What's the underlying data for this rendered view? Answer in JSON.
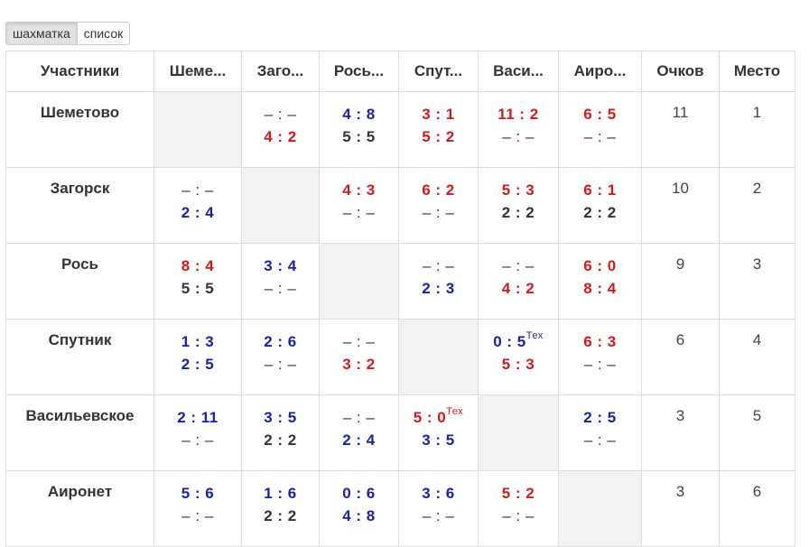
{
  "view_toggle": {
    "grid_label": "шахматка",
    "list_label": "список",
    "active": "grid"
  },
  "columns": {
    "participants": "Участники",
    "opponents": [
      "Шеме...",
      "Заго...",
      "Рось...",
      "Спут...",
      "Васи...",
      "Аиро..."
    ],
    "points": "Очков",
    "place": "Место"
  },
  "rows": [
    {
      "team": "Шеметово",
      "points": "11",
      "place": "1",
      "cells": [
        null,
        [
          {
            "t": "– : –",
            "c": "empty"
          },
          {
            "t": "4 : 2",
            "c": "red"
          }
        ],
        [
          {
            "t": "4 : 8",
            "c": "blue"
          },
          {
            "t": "5 : 5",
            "c": "black"
          }
        ],
        [
          {
            "t": "3 : 1",
            "c": "red"
          },
          {
            "t": "5 : 2",
            "c": "red"
          }
        ],
        [
          {
            "t": "11 : 2",
            "c": "red"
          },
          {
            "t": "– : –",
            "c": "empty"
          }
        ],
        [
          {
            "t": "6 : 5",
            "c": "red"
          },
          {
            "t": "– : –",
            "c": "empty"
          }
        ]
      ]
    },
    {
      "team": "Загорск",
      "points": "10",
      "place": "2",
      "cells": [
        [
          {
            "t": "– : –",
            "c": "empty"
          },
          {
            "t": "2 : 4",
            "c": "blue"
          }
        ],
        null,
        [
          {
            "t": "4 : 3",
            "c": "red"
          },
          {
            "t": "– : –",
            "c": "empty"
          }
        ],
        [
          {
            "t": "6 : 2",
            "c": "red"
          },
          {
            "t": "– : –",
            "c": "empty"
          }
        ],
        [
          {
            "t": "5 : 3",
            "c": "red"
          },
          {
            "t": "2 : 2",
            "c": "black"
          }
        ],
        [
          {
            "t": "6 : 1",
            "c": "red"
          },
          {
            "t": "2 : 2",
            "c": "black"
          }
        ]
      ]
    },
    {
      "team": "Рось",
      "points": "9",
      "place": "3",
      "cells": [
        [
          {
            "t": "8 : 4",
            "c": "red"
          },
          {
            "t": "5 : 5",
            "c": "black"
          }
        ],
        [
          {
            "t": "3 : 4",
            "c": "blue"
          },
          {
            "t": "– : –",
            "c": "empty"
          }
        ],
        null,
        [
          {
            "t": "– : –",
            "c": "empty"
          },
          {
            "t": "2 : 3",
            "c": "blue"
          }
        ],
        [
          {
            "t": "– : –",
            "c": "empty"
          },
          {
            "t": "4 : 2",
            "c": "red"
          }
        ],
        [
          {
            "t": "6 : 0",
            "c": "red"
          },
          {
            "t": "8 : 4",
            "c": "red"
          }
        ]
      ]
    },
    {
      "team": "Спутник",
      "points": "6",
      "place": "4",
      "cells": [
        [
          {
            "t": "1 : 3",
            "c": "blue"
          },
          {
            "t": "2 : 5",
            "c": "blue"
          }
        ],
        [
          {
            "t": "2 : 6",
            "c": "blue"
          },
          {
            "t": "– : –",
            "c": "empty"
          }
        ],
        [
          {
            "t": "– : –",
            "c": "empty"
          },
          {
            "t": "3 : 2",
            "c": "red"
          }
        ],
        null,
        [
          {
            "t": "0 : 5",
            "c": "blue",
            "sup": "Тех"
          },
          {
            "t": "5 : 3",
            "c": "red"
          }
        ],
        [
          {
            "t": "6 : 3",
            "c": "red"
          },
          {
            "t": "– : –",
            "c": "empty"
          }
        ]
      ]
    },
    {
      "team": "Васильевское",
      "points": "3",
      "place": "5",
      "cells": [
        [
          {
            "t": "2 : 11",
            "c": "blue"
          },
          {
            "t": "– : –",
            "c": "empty"
          }
        ],
        [
          {
            "t": "3 : 5",
            "c": "blue"
          },
          {
            "t": "2 : 2",
            "c": "black"
          }
        ],
        [
          {
            "t": "– : –",
            "c": "empty"
          },
          {
            "t": "2 : 4",
            "c": "blue"
          }
        ],
        [
          {
            "t": "5 : 0",
            "c": "red",
            "sup": "Тех"
          },
          {
            "t": "3 : 5",
            "c": "blue"
          }
        ],
        null,
        [
          {
            "t": "2 : 5",
            "c": "blue"
          },
          {
            "t": "– : –",
            "c": "empty"
          }
        ]
      ]
    },
    {
      "team": "Аиронет",
      "points": "3",
      "place": "6",
      "cells": [
        [
          {
            "t": "5 : 6",
            "c": "blue"
          },
          {
            "t": "– : –",
            "c": "empty"
          }
        ],
        [
          {
            "t": "1 : 6",
            "c": "blue"
          },
          {
            "t": "2 : 2",
            "c": "black"
          }
        ],
        [
          {
            "t": "0 : 6",
            "c": "blue"
          },
          {
            "t": "4 : 8",
            "c": "blue"
          }
        ],
        [
          {
            "t": "3 : 6",
            "c": "blue"
          },
          {
            "t": "– : –",
            "c": "empty"
          }
        ],
        [
          {
            "t": "5 : 2",
            "c": "red"
          },
          {
            "t": "– : –",
            "c": "empty"
          }
        ],
        null
      ]
    }
  ],
  "colors": {
    "win": "#d11b1b",
    "loss": "#1a22a8",
    "draw": "#333333",
    "self_cell": "#f2f2f2",
    "border": "#dddddd"
  }
}
